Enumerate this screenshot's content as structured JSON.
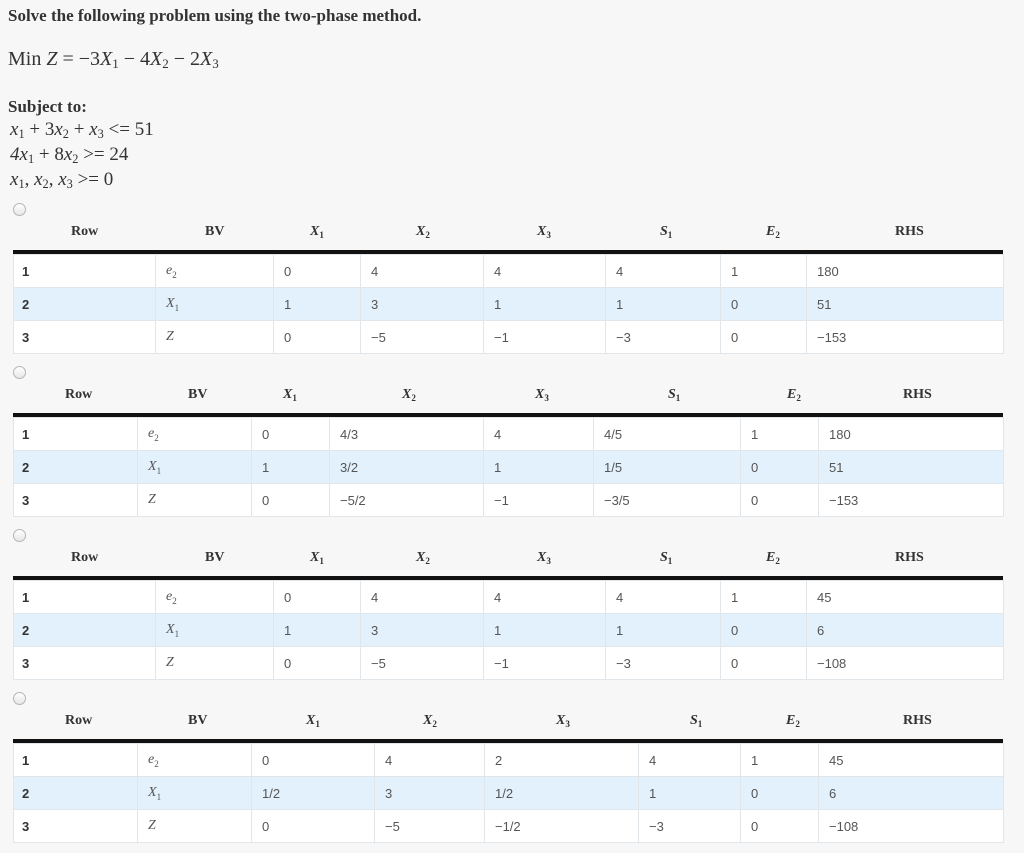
{
  "title": "Solve the following problem using the two-phase method.",
  "objective": {
    "prefix": "Min",
    "lhs": "Z",
    "eq": " = −3",
    "t1": "X",
    "s1": "1",
    "op1": " − 4",
    "t2": "X",
    "s2": "2",
    "op2": " − 2",
    "t3": "X",
    "s3": "3"
  },
  "subject_to": "Subject to:",
  "constraints": [
    {
      "a": "x",
      "as": "1",
      "b": " + 3",
      "c": "x",
      "cs": "2",
      "d": " + ",
      "e": "x",
      "es": "3",
      "rel": " <= 51"
    },
    {
      "a": "4x",
      "as": "1",
      "b": " + 8",
      "c": "x",
      "cs": "2",
      "rel": " >= 24"
    },
    {
      "a": "x",
      "as": "1",
      "b": ", ",
      "c": "x",
      "cs": "2",
      "d": ", ",
      "e": "x",
      "es": "3",
      "rel": " >= 0"
    }
  ],
  "headers": {
    "row": "Row",
    "bv": "BV",
    "x1": "X",
    "x1s": "1",
    "x2": "X",
    "x2s": "2",
    "x3": "X",
    "x3s": "3",
    "s1": "S",
    "s1s": "1",
    "e2": "E",
    "e2s": "2",
    "rhs": "RHS"
  },
  "options": [
    {
      "rows": [
        {
          "row": "1",
          "bv": "e",
          "bvs": "2",
          "x1": "0",
          "x2": "4",
          "x3": "4",
          "s1": "4",
          "e2": "1",
          "rhs": "180"
        },
        {
          "row": "2",
          "bv": "X",
          "bvs": "1",
          "x1": "1",
          "x2": "3",
          "x3": "1",
          "s1": "1",
          "e2": "0",
          "rhs": "51"
        },
        {
          "row": "3",
          "bv": "Z",
          "bvs": "",
          "x1": "0",
          "x2": "−5",
          "x3": "−1",
          "s1": "−3",
          "e2": "0",
          "rhs": "−153"
        }
      ]
    },
    {
      "rows": [
        {
          "row": "1",
          "bv": "e",
          "bvs": "2",
          "x1": "0",
          "x2": "4/3",
          "x3": "4",
          "s1": "4/5",
          "e2": "1",
          "rhs": "180"
        },
        {
          "row": "2",
          "bv": "X",
          "bvs": "1",
          "x1": "1",
          "x2": "3/2",
          "x3": "1",
          "s1": "1/5",
          "e2": "0",
          "rhs": "51"
        },
        {
          "row": "3",
          "bv": "Z",
          "bvs": "",
          "x1": "0",
          "x2": "−5/2",
          "x3": "−1",
          "s1": "−3/5",
          "e2": "0",
          "rhs": "−153"
        }
      ]
    },
    {
      "rows": [
        {
          "row": "1",
          "bv": "e",
          "bvs": "2",
          "x1": "0",
          "x2": "4",
          "x3": "4",
          "s1": "4",
          "e2": "1",
          "rhs": "45"
        },
        {
          "row": "2",
          "bv": "X",
          "bvs": "1",
          "x1": "1",
          "x2": "3",
          "x3": "1",
          "s1": "1",
          "e2": "0",
          "rhs": "6"
        },
        {
          "row": "3",
          "bv": "Z",
          "bvs": "",
          "x1": "0",
          "x2": "−5",
          "x3": "−1",
          "s1": "−3",
          "e2": "0",
          "rhs": "−108"
        }
      ]
    },
    {
      "rows": [
        {
          "row": "1",
          "bv": "e",
          "bvs": "2",
          "x1": "0",
          "x2": "4",
          "x3": "2",
          "s1": "4",
          "e2": "1",
          "rhs": "45"
        },
        {
          "row": "2",
          "bv": "X",
          "bvs": "1",
          "x1": "1/2",
          "x2": "3",
          "x3": "1/2",
          "s1": "1",
          "e2": "0",
          "rhs": "6"
        },
        {
          "row": "3",
          "bv": "Z",
          "bvs": "",
          "x1": "0",
          "x2": "−5",
          "x3": "−1/2",
          "s1": "−3",
          "e2": "0",
          "rhs": "−108"
        }
      ]
    }
  ]
}
